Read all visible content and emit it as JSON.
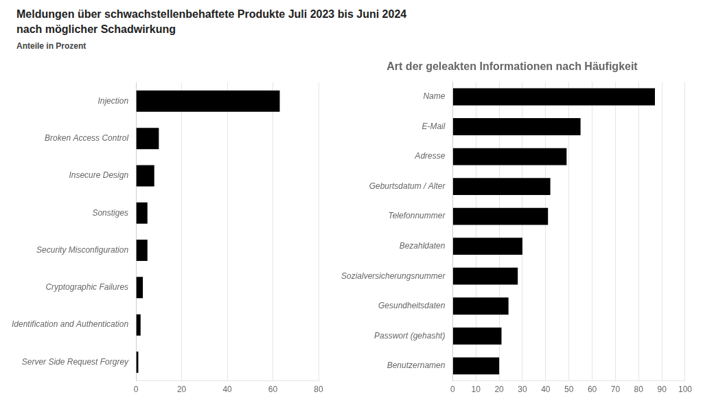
{
  "chart_data": [
    {
      "type": "bar",
      "orientation": "horizontal",
      "title": [
        "Meldungen über schwachstellenbehaftete Produkte Juli 2023 bis Juni 2024",
        "nach möglicher Schadwirkung"
      ],
      "subtitle": "Anteile in Prozent",
      "categories": [
        "Server Side Request Forgrey",
        "Identification and Authentication",
        "Cryptographic Failures",
        "Security Misconfiguration",
        "Sonstiges",
        "Insecure Design",
        "Broken Access Control",
        "Injection"
      ],
      "values": [
        1,
        2,
        3,
        5,
        5,
        8,
        10,
        63
      ],
      "color": "#000000",
      "xlim": [
        0,
        80
      ],
      "xticks": [
        0,
        20,
        40,
        60,
        80
      ],
      "grid": true
    },
    {
      "type": "bar",
      "orientation": "horizontal",
      "title": "Art der geleakten Informationen nach Häufigkeit",
      "categories": [
        "Benutzernamen",
        "Passwort (gehasht)",
        "Gesundheitsdaten",
        "Sozialversicherungsnummer",
        "Bezahldaten",
        "Telefonnummer",
        "Geburtsdatum / Alter",
        "Adresse",
        "E-Mail",
        "Name"
      ],
      "values": [
        20,
        21,
        24,
        28,
        30,
        41,
        42,
        49,
        55,
        87
      ],
      "color": "#000000",
      "xlim": [
        0,
        100
      ],
      "xticks": [
        0,
        10,
        20,
        30,
        40,
        50,
        60,
        70,
        80,
        90,
        100
      ],
      "grid": true
    }
  ]
}
